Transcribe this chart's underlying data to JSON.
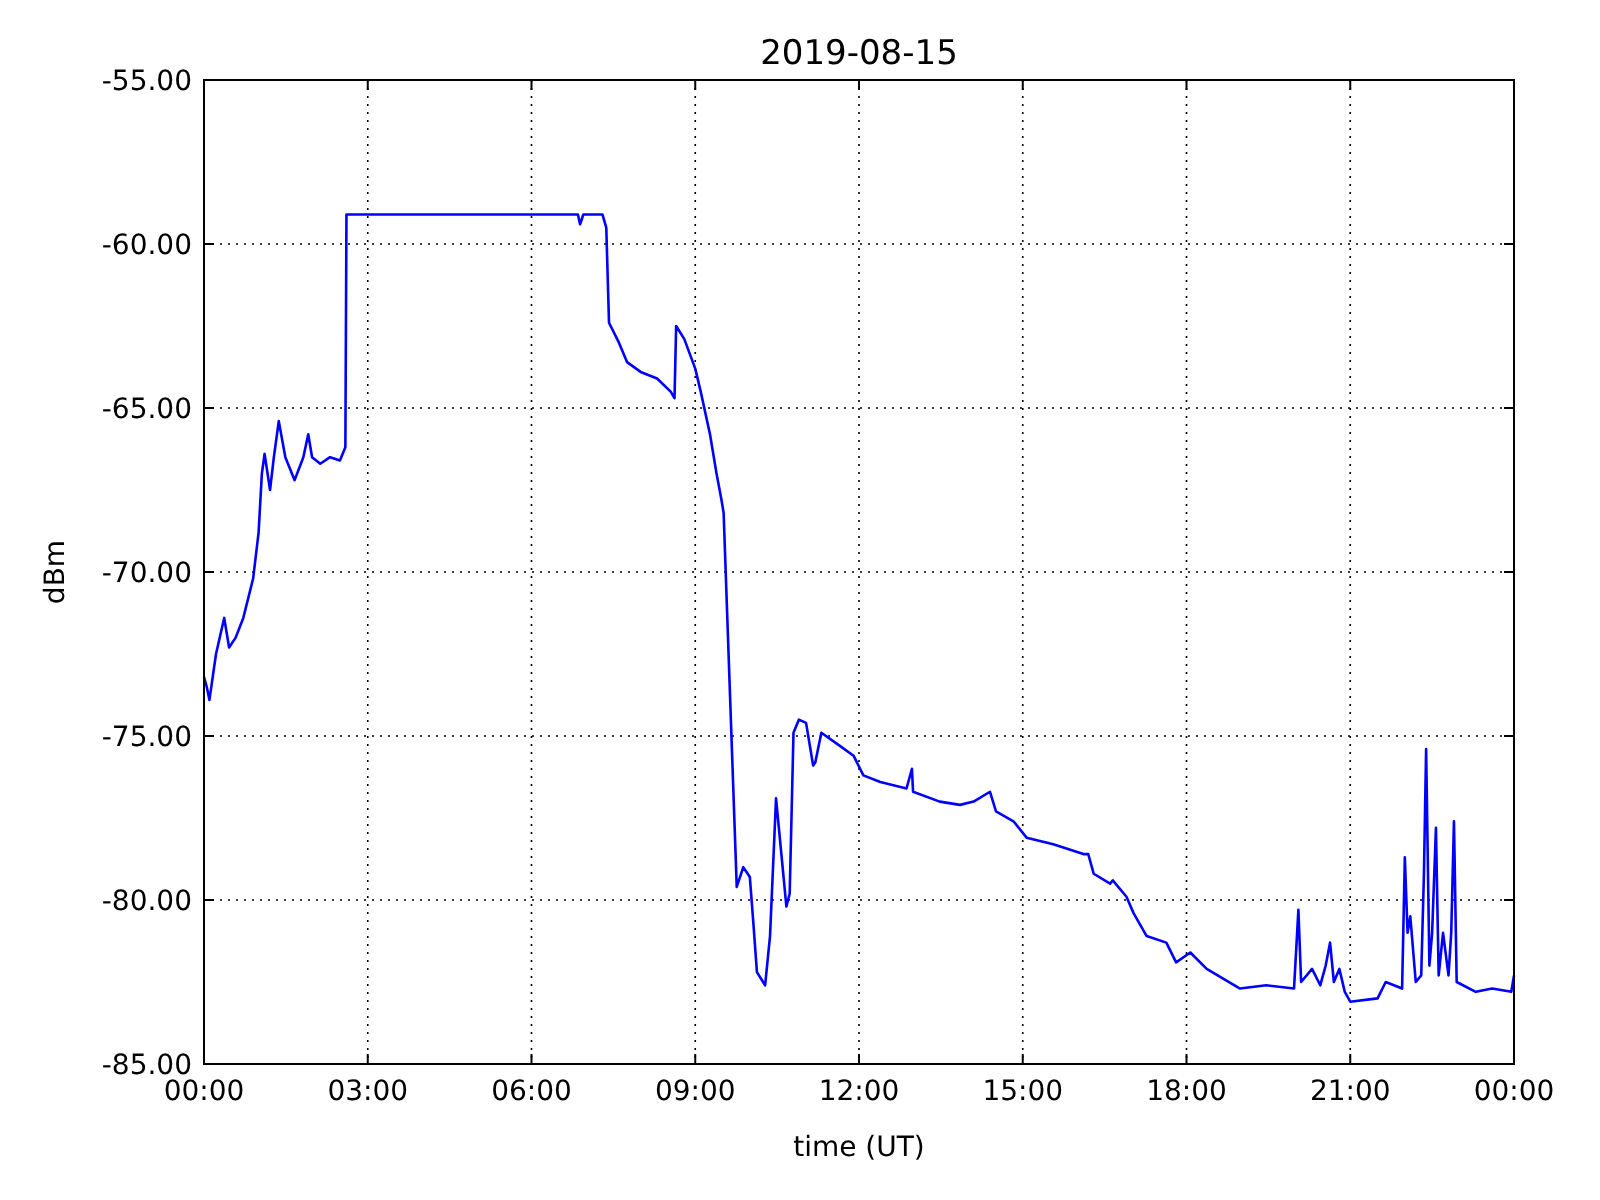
{
  "chart_data": {
    "type": "line",
    "title": "2019-08-15",
    "xlabel": "time (UT)",
    "ylabel": "dBm",
    "x": [
      0,
      0.05,
      0.1,
      0.22,
      0.37,
      0.46,
      0.58,
      0.72,
      0.9,
      1.0,
      1.06,
      1.11,
      1.21,
      1.28,
      1.37,
      1.49,
      1.66,
      1.82,
      1.91,
      1.98,
      2.13,
      2.31,
      2.49,
      2.59,
      2.61,
      6.85,
      6.89,
      6.95,
      7.3,
      7.37,
      7.42,
      7.6,
      7.75,
      8.0,
      8.3,
      8.55,
      8.62,
      8.65,
      8.8,
      9.0,
      9.1,
      9.27,
      9.39,
      9.48,
      9.52,
      9.76,
      9.88,
      10.0,
      10.06,
      10.13,
      10.28,
      10.37,
      10.48,
      10.67,
      10.73,
      10.8,
      10.9,
      11.03,
      11.16,
      11.2,
      11.31,
      11.65,
      11.9,
      12.08,
      12.39,
      12.87,
      12.97,
      12.99,
      13.48,
      13.85,
      14.1,
      14.4,
      14.51,
      14.83,
      15.07,
      15.56,
      16.11,
      16.2,
      16.3,
      16.6,
      16.65,
      16.9,
      17.03,
      17.27,
      17.63,
      17.81,
      18.07,
      18.37,
      18.98,
      19.46,
      19.97,
      20.05,
      20.1,
      20.3,
      20.45,
      20.55,
      20.63,
      20.7,
      20.8,
      20.9,
      21.0,
      21.5,
      21.65,
      21.95,
      22.0,
      22.05,
      22.1,
      22.2,
      22.3,
      22.35,
      22.39,
      22.45,
      22.5,
      22.57,
      22.62,
      22.7,
      22.8,
      22.85,
      22.9,
      22.95,
      23.3,
      23.6,
      23.95,
      24.0
    ],
    "series": [
      {
        "color": "#0000ff",
        "values": [
          -73.2,
          -73.5,
          -73.9,
          -72.5,
          -71.4,
          -72.3,
          -72.0,
          -71.4,
          -70.2,
          -68.8,
          -67.0,
          -66.4,
          -67.5,
          -66.5,
          -65.4,
          -66.5,
          -67.2,
          -66.5,
          -65.8,
          -66.5,
          -66.7,
          -66.5,
          -66.6,
          -66.2,
          -59.1,
          -59.1,
          -59.4,
          -59.1,
          -59.1,
          -59.5,
          -62.4,
          -63.0,
          -63.6,
          -63.9,
          -64.1,
          -64.5,
          -64.7,
          -62.5,
          -62.9,
          -63.8,
          -64.5,
          -65.8,
          -67.0,
          -67.8,
          -68.2,
          -79.6,
          -79.0,
          -79.3,
          -80.6,
          -82.2,
          -82.6,
          -81.1,
          -76.9,
          -80.2,
          -79.8,
          -74.9,
          -74.5,
          -74.6,
          -75.9,
          -75.8,
          -74.9,
          -75.3,
          -75.6,
          -76.2,
          -76.4,
          -76.6,
          -76.0,
          -76.7,
          -77.0,
          -77.1,
          -77.0,
          -76.7,
          -77.3,
          -77.6,
          -78.1,
          -78.3,
          -78.6,
          -78.6,
          -79.2,
          -79.5,
          -79.4,
          -79.9,
          -80.4,
          -81.1,
          -81.3,
          -81.9,
          -81.6,
          -82.1,
          -82.7,
          -82.6,
          -82.7,
          -80.3,
          -82.5,
          -82.1,
          -82.6,
          -82.0,
          -81.3,
          -82.5,
          -82.1,
          -82.8,
          -83.1,
          -83.0,
          -82.5,
          -82.7,
          -78.7,
          -81.0,
          -80.5,
          -82.5,
          -82.3,
          -79.2,
          -75.4,
          -82.0,
          -81.0,
          -77.8,
          -82.3,
          -81.0,
          -82.3,
          -81.0,
          -77.6,
          -82.5,
          -82.8,
          -82.7,
          -82.8,
          -82.3
        ]
      }
    ],
    "xlim": [
      0,
      24
    ],
    "xticks": [
      {
        "value": 0,
        "label": "00:00"
      },
      {
        "value": 3,
        "label": "03:00"
      },
      {
        "value": 6,
        "label": "06:00"
      },
      {
        "value": 9,
        "label": "09:00"
      },
      {
        "value": 12,
        "label": "12:00"
      },
      {
        "value": 15,
        "label": "15:00"
      },
      {
        "value": 18,
        "label": "18:00"
      },
      {
        "value": 21,
        "label": "21:00"
      },
      {
        "value": 24,
        "label": "00:00"
      }
    ],
    "ylim": [
      -85,
      -55
    ],
    "yticks": [
      {
        "value": -85,
        "label": "-85.00"
      },
      {
        "value": -80,
        "label": "-80.00"
      },
      {
        "value": -75,
        "label": "-75.00"
      },
      {
        "value": -70,
        "label": "-70.00"
      },
      {
        "value": -65,
        "label": "-65.00"
      },
      {
        "value": -60,
        "label": "-60.00"
      },
      {
        "value": -55,
        "label": "-55.00"
      }
    ],
    "grid": true,
    "line_style": "solid"
  }
}
